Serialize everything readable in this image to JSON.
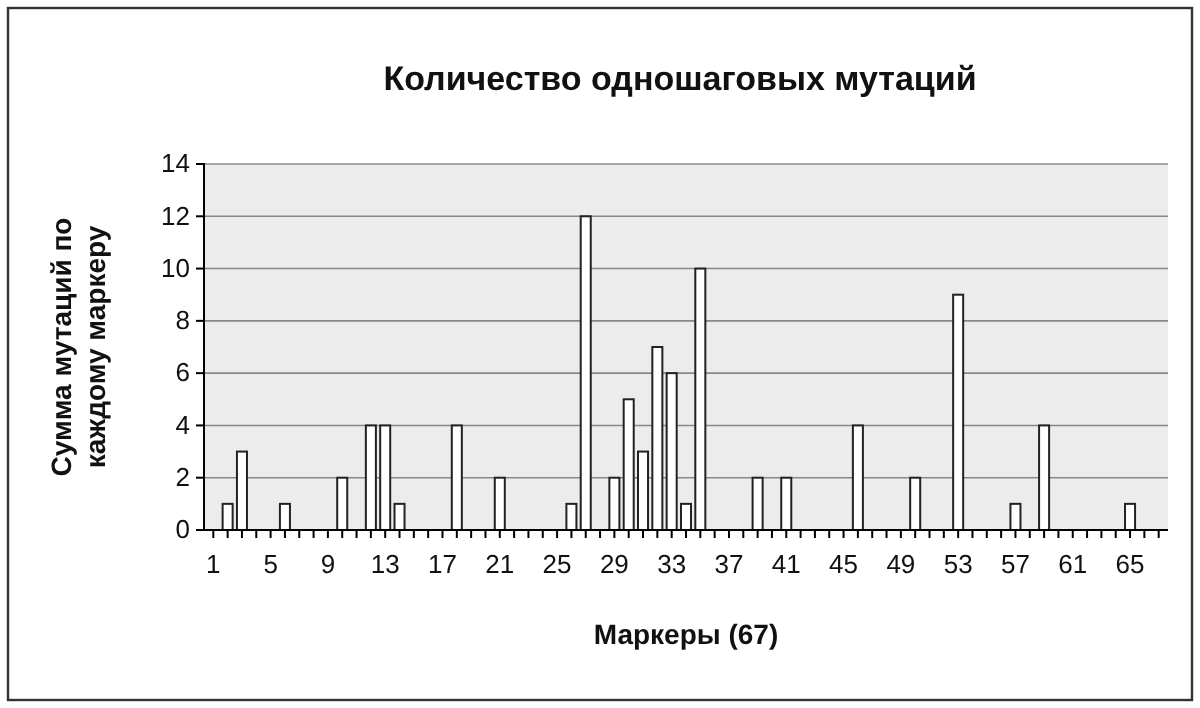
{
  "chart_data": {
    "type": "bar",
    "title": "Количество одношаговых мутаций",
    "xlabel": "Маркеры (67)",
    "ylabel": "Сумма мутаций по каждому маркеру",
    "categories": [
      "1",
      null,
      null,
      null,
      "5",
      null,
      null,
      null,
      "9",
      null,
      null,
      null,
      "13",
      null,
      null,
      null,
      "17",
      null,
      null,
      null,
      "21",
      null,
      null,
      null,
      "25",
      null,
      null,
      null,
      "29",
      null,
      null,
      null,
      "33",
      null,
      null,
      null,
      "37",
      null,
      null,
      null,
      "41",
      null,
      null,
      null,
      "45",
      null,
      null,
      null,
      "49",
      null,
      null,
      null,
      "53",
      null,
      null,
      null,
      "57",
      null,
      null,
      null,
      "61",
      null,
      null,
      null,
      "65",
      null,
      null
    ],
    "values": [
      0,
      1,
      3,
      0,
      0,
      1,
      0,
      0,
      0,
      2,
      0,
      4,
      4,
      1,
      0,
      0,
      0,
      4,
      0,
      0,
      2,
      0,
      0,
      0,
      0,
      1,
      12,
      0,
      2,
      5,
      3,
      7,
      6,
      1,
      10,
      0,
      0,
      0,
      2,
      0,
      2,
      0,
      0,
      0,
      0,
      4,
      0,
      0,
      0,
      2,
      0,
      0,
      9,
      0,
      0,
      0,
      1,
      0,
      4,
      0,
      0,
      0,
      0,
      0,
      1,
      0,
      0
    ],
    "color": "#ffffff",
    "ylim": [
      0,
      14
    ],
    "yticks": [
      0,
      2,
      4,
      6,
      8,
      10,
      12,
      14
    ],
    "grid": "y"
  }
}
